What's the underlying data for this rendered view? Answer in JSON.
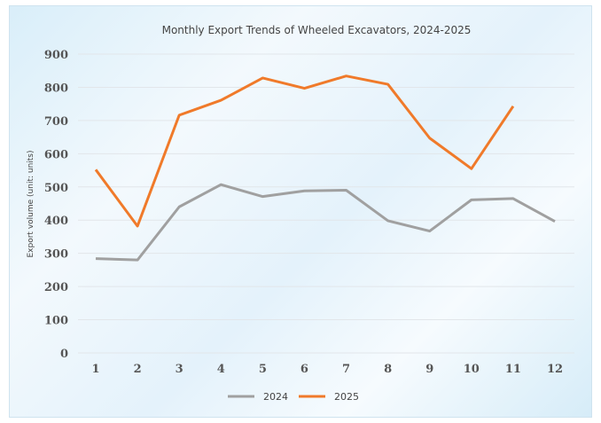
{
  "chart_data": {
    "type": "line",
    "title": "Monthly Export Trends of Wheeled Excavators, 2024-2025",
    "xlabel": "",
    "ylabel": "Export volume (unit: units)",
    "categories": [
      "1",
      "2",
      "3",
      "4",
      "5",
      "6",
      "7",
      "8",
      "9",
      "10",
      "11",
      "12"
    ],
    "ylim": [
      0,
      900
    ],
    "yticks": [
      0,
      100,
      200,
      300,
      400,
      500,
      600,
      700,
      800,
      900
    ],
    "grid": true,
    "legend_position": "bottom",
    "series": [
      {
        "name": "2024",
        "color": "#a0a0a0",
        "values": [
          284,
          280,
          440,
          507,
          471,
          488,
          490,
          398,
          367,
          461,
          465,
          396
        ]
      },
      {
        "name": "2025",
        "color": "#f07a2a",
        "values": [
          552,
          382,
          716,
          761,
          828,
          797,
          834,
          809,
          647,
          555,
          743,
          null
        ]
      }
    ]
  }
}
